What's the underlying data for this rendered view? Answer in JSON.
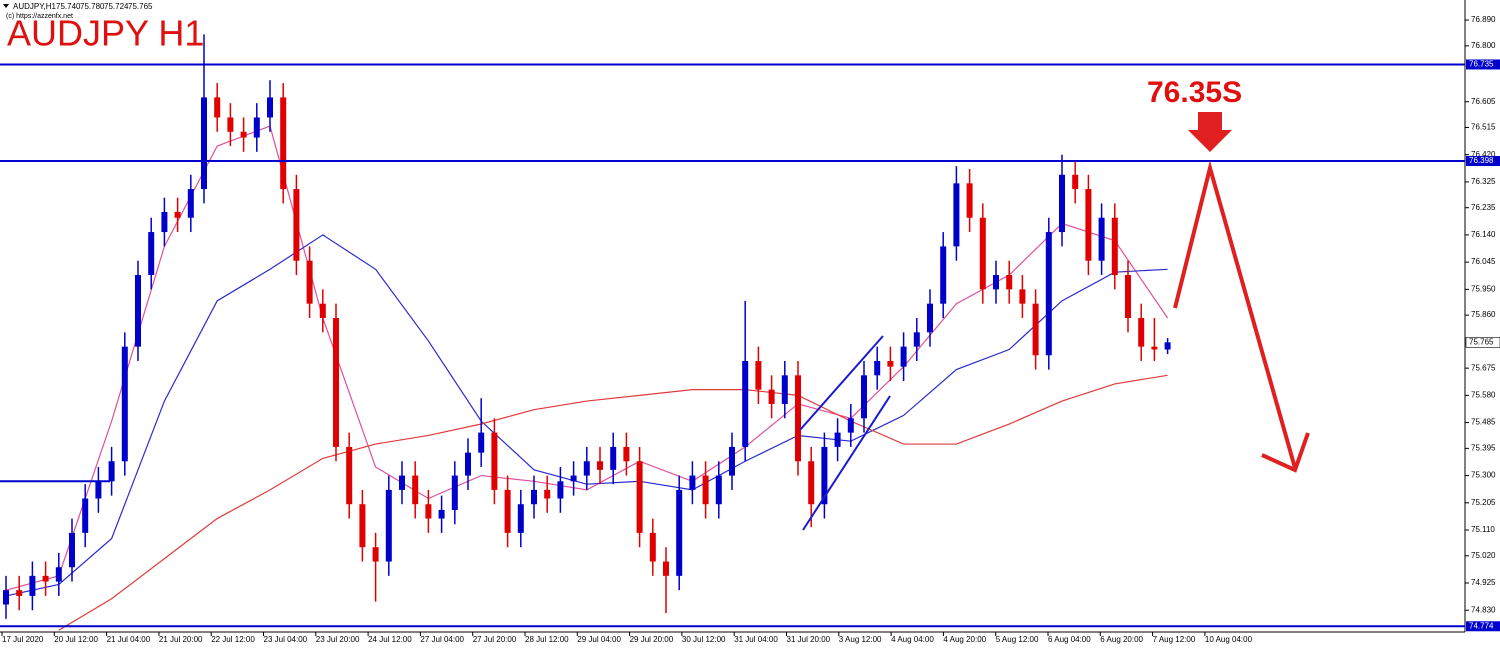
{
  "chart_data": {
    "type": "candlestick",
    "symbol": "AUDJPY,H1",
    "last_labels": [
      "75.740",
      "75.780",
      "75.724",
      "75.765"
    ],
    "copyright": "(c) https://azzenfx.net",
    "title": "AUDJPY H1",
    "annotation": "76.35S",
    "up_color": "#0000cd",
    "down_color": "#e00000",
    "level_color": "#0000cd",
    "ylim": [
      74.754,
      76.96
    ],
    "yticks": [
      {
        "value": 76.89,
        "label": "76.890"
      },
      {
        "value": 76.8,
        "label": "76.800"
      },
      76.605,
      76.515,
      {
        "value": 76.42,
        "label": "76.420"
      },
      76.325,
      76.235,
      {
        "value": 76.14,
        "label": "76.140"
      },
      76.045,
      {
        "value": 75.95,
        "label": "75.950"
      },
      {
        "value": 75.86,
        "label": "75.860"
      },
      75.675,
      {
        "value": 75.58,
        "label": "75.580"
      },
      75.485,
      75.395,
      {
        "value": 75.3,
        "label": "75.300"
      },
      75.205,
      {
        "value": 75.11,
        "label": "75.110"
      },
      {
        "value": 75.02,
        "label": "75.020"
      },
      74.925,
      {
        "value": 74.83,
        "label": "74.830"
      }
    ],
    "levels": [
      76.735,
      76.398,
      74.774
    ],
    "short_level": 75.28,
    "x_labels": [
      "17 Jul 2020",
      "20 Jul 12:00",
      "21 Jul 04:00",
      "21 Jul 20:00",
      "22 Jul 12:00",
      "23 Jul 04:00",
      "23 Jul 20:00",
      "24 Jul 12:00",
      "27 Jul 04:00",
      "27 Jul 20:00",
      "28 Jul 12:00",
      "29 Jul 04:00",
      "29 Jul 20:00",
      "30 Jul 12:00",
      "31 Jul 04:00",
      "31 Jul 20:00",
      "3 Aug 12:00",
      "4 Aug 04:00",
      "4 Aug 20:00",
      "5 Aug 12:00",
      "6 Aug 04:00",
      "6 Aug 20:00",
      "7 Aug 12:00",
      "10 Aug 04:00"
    ],
    "candles": [
      [
        74.85,
        74.95,
        74.8,
        74.9
      ],
      [
        74.9,
        74.95,
        74.83,
        74.88
      ],
      [
        74.88,
        75.0,
        74.83,
        74.95
      ],
      [
        74.95,
        75.0,
        74.88,
        74.93
      ],
      [
        74.93,
        75.03,
        74.88,
        74.98
      ],
      [
        74.98,
        75.15,
        74.93,
        75.1
      ],
      [
        75.1,
        75.27,
        75.05,
        75.22
      ],
      [
        75.22,
        75.33,
        75.17,
        75.28
      ],
      [
        75.28,
        75.4,
        75.23,
        75.35
      ],
      [
        75.35,
        75.8,
        75.3,
        75.75
      ],
      [
        75.75,
        76.05,
        75.7,
        76.0
      ],
      [
        76.0,
        76.2,
        75.95,
        76.15
      ],
      [
        76.15,
        76.27,
        76.1,
        76.22
      ],
      [
        76.22,
        76.27,
        76.15,
        76.2
      ],
      [
        76.2,
        76.35,
        76.15,
        76.3
      ],
      [
        76.3,
        76.84,
        76.25,
        76.62
      ],
      [
        76.62,
        76.67,
        76.5,
        76.55
      ],
      [
        76.55,
        76.6,
        76.45,
        76.5
      ],
      [
        76.5,
        76.55,
        76.43,
        76.48
      ],
      [
        76.48,
        76.6,
        76.43,
        76.55
      ],
      [
        76.55,
        76.68,
        76.5,
        76.62
      ],
      [
        76.62,
        76.67,
        76.25,
        76.3
      ],
      [
        76.3,
        76.35,
        76.0,
        76.05
      ],
      [
        76.05,
        76.1,
        75.85,
        75.9
      ],
      [
        75.9,
        75.95,
        75.8,
        75.85
      ],
      [
        75.85,
        75.9,
        75.35,
        75.4
      ],
      [
        75.4,
        75.45,
        75.15,
        75.2
      ],
      [
        75.2,
        75.25,
        75.0,
        75.05
      ],
      [
        75.05,
        75.1,
        74.86,
        75.0
      ],
      [
        75.0,
        75.3,
        74.95,
        75.25
      ],
      [
        75.25,
        75.35,
        75.2,
        75.3
      ],
      [
        75.3,
        75.35,
        75.15,
        75.2
      ],
      [
        75.2,
        75.25,
        75.1,
        75.15
      ],
      [
        75.15,
        75.23,
        75.1,
        75.18
      ],
      [
        75.18,
        75.35,
        75.13,
        75.3
      ],
      [
        75.3,
        75.43,
        75.25,
        75.38
      ],
      [
        75.38,
        75.57,
        75.33,
        75.45
      ],
      [
        75.45,
        75.5,
        75.2,
        75.25
      ],
      [
        75.25,
        75.3,
        75.05,
        75.1
      ],
      [
        75.1,
        75.25,
        75.05,
        75.2
      ],
      [
        75.2,
        75.3,
        75.15,
        75.25
      ],
      [
        75.25,
        75.3,
        75.17,
        75.22
      ],
      [
        75.22,
        75.33,
        75.17,
        75.28
      ],
      [
        75.28,
        75.35,
        75.23,
        75.3
      ],
      [
        75.3,
        75.4,
        75.25,
        75.35
      ],
      [
        75.35,
        75.4,
        75.27,
        75.32
      ],
      [
        75.32,
        75.45,
        75.27,
        75.4
      ],
      [
        75.4,
        75.45,
        75.3,
        75.35
      ],
      [
        75.35,
        75.4,
        75.05,
        75.1
      ],
      [
        75.1,
        75.15,
        74.95,
        75.0
      ],
      [
        75.0,
        75.05,
        74.82,
        74.95
      ],
      [
        74.95,
        75.3,
        74.9,
        75.25
      ],
      [
        75.25,
        75.35,
        75.2,
        75.3
      ],
      [
        75.3,
        75.35,
        75.15,
        75.2
      ],
      [
        75.2,
        75.35,
        75.15,
        75.3
      ],
      [
        75.3,
        75.45,
        75.25,
        75.4
      ],
      [
        75.4,
        75.91,
        75.35,
        75.7
      ],
      [
        75.7,
        75.75,
        75.55,
        75.6
      ],
      [
        75.6,
        75.65,
        75.5,
        75.55
      ],
      [
        75.55,
        75.7,
        75.5,
        75.65
      ],
      [
        75.65,
        75.7,
        75.3,
        75.35
      ],
      [
        75.35,
        75.4,
        75.12,
        75.2
      ],
      [
        75.2,
        75.45,
        75.15,
        75.4
      ],
      [
        75.4,
        75.5,
        75.35,
        75.45
      ],
      [
        75.45,
        75.55,
        75.4,
        75.5
      ],
      [
        75.5,
        75.7,
        75.45,
        75.65
      ],
      [
        75.65,
        75.75,
        75.6,
        75.7
      ],
      [
        75.7,
        75.75,
        75.63,
        75.68
      ],
      [
        75.68,
        75.8,
        75.63,
        75.75
      ],
      [
        75.75,
        75.85,
        75.7,
        75.8
      ],
      [
        75.8,
        75.95,
        75.75,
        75.9
      ],
      [
        75.9,
        76.15,
        75.85,
        76.1
      ],
      [
        76.1,
        76.38,
        76.05,
        76.32
      ],
      [
        76.32,
        76.37,
        76.15,
        76.2
      ],
      [
        76.2,
        76.25,
        75.9,
        75.95
      ],
      [
        75.95,
        76.05,
        75.9,
        76.0
      ],
      [
        76.0,
        76.05,
        75.9,
        75.95
      ],
      [
        75.95,
        76.0,
        75.85,
        75.9
      ],
      [
        75.9,
        75.95,
        75.67,
        75.72
      ],
      [
        75.72,
        76.2,
        75.67,
        76.15
      ],
      [
        76.15,
        76.42,
        76.1,
        76.35
      ],
      [
        76.35,
        76.4,
        76.25,
        76.3
      ],
      [
        76.3,
        76.35,
        76.0,
        76.05
      ],
      [
        76.05,
        76.25,
        76.0,
        76.2
      ],
      [
        76.2,
        76.25,
        75.95,
        76.0
      ],
      [
        76.0,
        76.05,
        75.8,
        75.85
      ],
      [
        75.85,
        75.9,
        75.7,
        75.75
      ],
      [
        75.75,
        75.85,
        75.7,
        75.74
      ],
      [
        75.74,
        75.78,
        75.724,
        75.765
      ]
    ],
    "ma_x": [
      0,
      4,
      8,
      12,
      16,
      20,
      24,
      28,
      32,
      36,
      40,
      44,
      48,
      52,
      56,
      60,
      64,
      68,
      72,
      76,
      80,
      84,
      88
    ],
    "ma": [
      {
        "color": "#e0509a",
        "values": [
          74.9,
          74.95,
          75.49,
          76.1,
          76.45,
          76.52,
          75.85,
          75.33,
          75.22,
          75.3,
          75.28,
          75.25,
          75.35,
          75.28,
          75.4,
          75.55,
          75.5,
          75.68,
          75.9,
          76.0,
          76.18,
          76.12,
          75.85
        ]
      },
      {
        "color": "#2a2ad0",
        "values": [
          74.88,
          74.92,
          75.08,
          75.56,
          75.91,
          76.02,
          76.14,
          76.02,
          75.77,
          75.49,
          75.32,
          75.27,
          75.28,
          75.25,
          75.35,
          75.44,
          75.42,
          75.51,
          75.67,
          75.74,
          75.91,
          76.01,
          76.02
        ]
      },
      {
        "color": "#e03a3a",
        "values": [
          null,
          74.76,
          74.87,
          75.01,
          75.15,
          75.25,
          75.36,
          75.41,
          75.44,
          75.48,
          75.53,
          75.56,
          75.58,
          75.6,
          75.6,
          75.58,
          75.49,
          75.41,
          75.41,
          75.48,
          75.56,
          75.62,
          75.65
        ]
      }
    ]
  }
}
